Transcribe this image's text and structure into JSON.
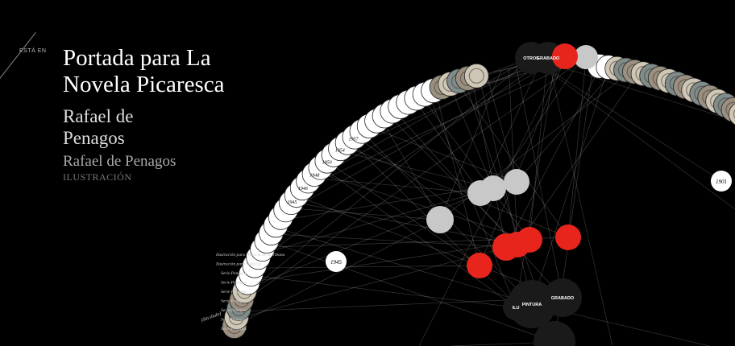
{
  "header": {
    "esta_en": "ESTÁ EN",
    "title": "Portada para La Novela Picaresca",
    "author": "Rafael de Penagos",
    "author_secondary": "Rafael de Penagos",
    "category": "ILUSTRACIÓN"
  },
  "years": [
    "1957",
    "1954",
    "1950",
    "1948",
    "1946",
    "1945",
    "1945"
  ],
  "isolated_years": [
    "1901"
  ],
  "tag_nodes": [
    "OTROS",
    "PINTURA",
    "GRABADO",
    "ILU"
  ],
  "ring_labels": [
    "(Sin título)"
  ],
  "left_labels": [
    "Ilustración para Historia de la tribuna",
    "Ilustración para Historia",
    "Serie Penagos",
    "Serie Penagos",
    "Serie Penagos",
    "Serie Penagos",
    "Serie Penagos",
    "Serie Penagos",
    "Serie Penagos"
  ],
  "colors": {
    "accent": "#e8251c",
    "node_gray": "#c8c8c8",
    "ring_white": "#ffffff",
    "dark_node": "#1a1a1a"
  }
}
